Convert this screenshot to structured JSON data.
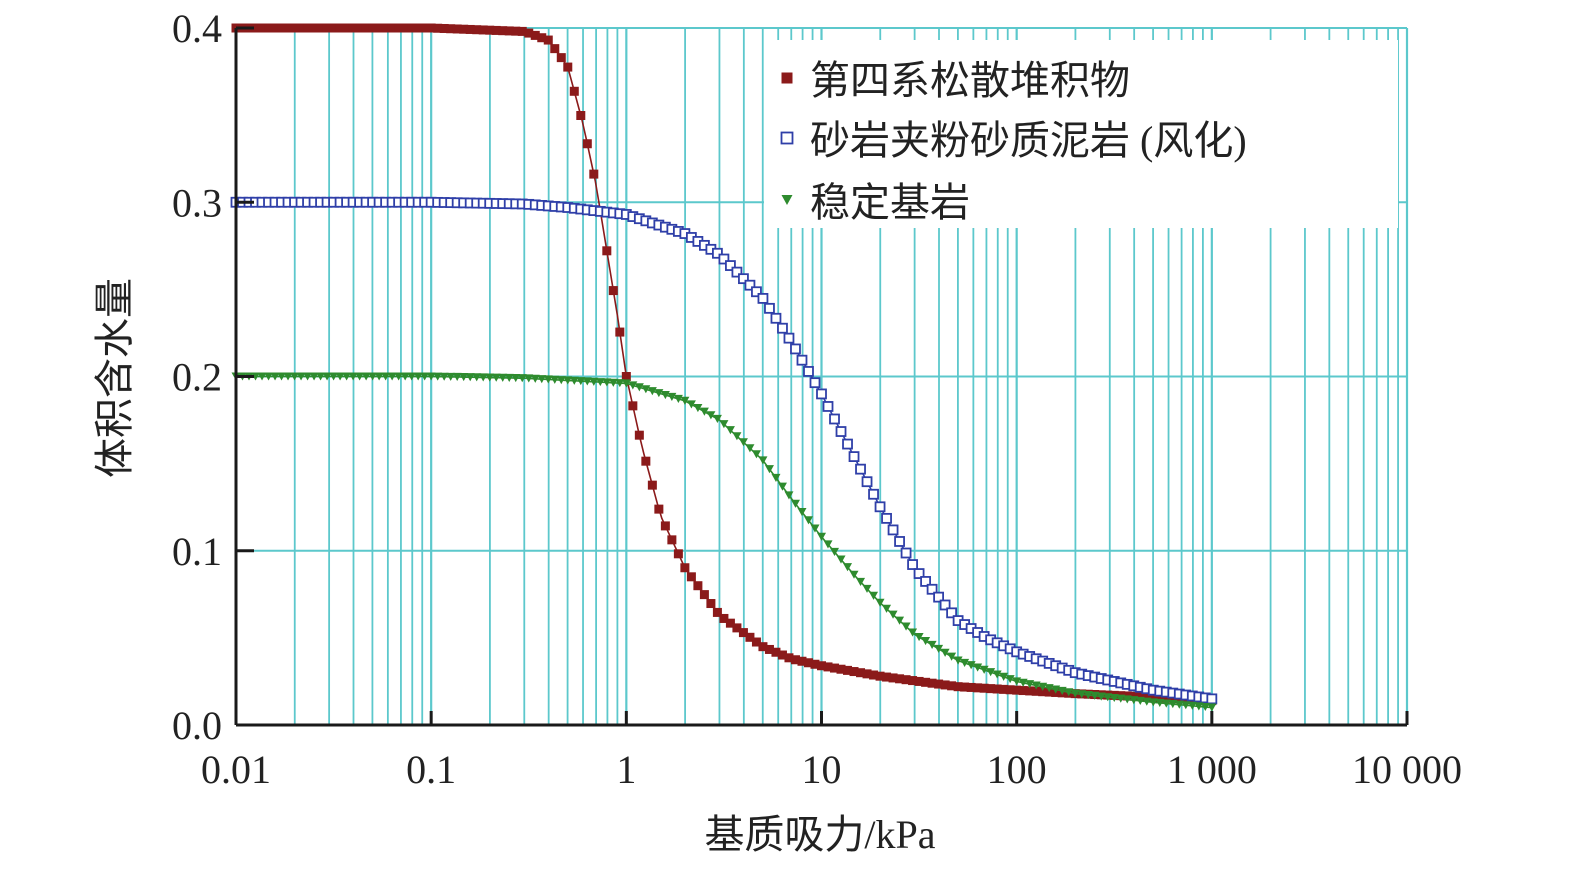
{
  "chart_data": {
    "type": "line",
    "xscale": "log",
    "xlabel": "基质吸力/kPa",
    "ylabel": "体积含水量",
    "xlim": [
      0.01,
      10000
    ],
    "ylim": [
      0.0,
      0.4
    ],
    "x_ticks": [
      {
        "value": 0.01,
        "label": "0.01"
      },
      {
        "value": 0.1,
        "label": "0.1"
      },
      {
        "value": 1,
        "label": "1"
      },
      {
        "value": 10,
        "label": "10"
      },
      {
        "value": 100,
        "label": "100"
      },
      {
        "value": 1000,
        "label": "1 000"
      },
      {
        "value": 10000,
        "label": "10 000"
      }
    ],
    "y_ticks": [
      {
        "value": 0.0,
        "label": "0.0"
      },
      {
        "value": 0.1,
        "label": "0.1"
      },
      {
        "value": 0.2,
        "label": "0.2"
      },
      {
        "value": 0.3,
        "label": "0.3"
      },
      {
        "value": 0.4,
        "label": "0.4"
      }
    ],
    "grid": true,
    "grid_color": "#5cc8cc",
    "legend_position": "top-right",
    "series": [
      {
        "name": "第四系松散堆积物",
        "marker": "filled-square",
        "color": "#8b1a1a",
        "x": [
          0.01,
          0.03,
          0.1,
          0.3,
          0.4,
          0.5,
          0.6,
          0.7,
          0.8,
          0.9,
          1.0,
          1.2,
          1.5,
          2,
          3,
          5,
          7,
          10,
          20,
          50,
          100,
          200,
          500,
          1000
        ],
        "y": [
          0.4,
          0.4,
          0.4,
          0.398,
          0.393,
          0.378,
          0.345,
          0.31,
          0.27,
          0.235,
          0.2,
          0.16,
          0.12,
          0.09,
          0.063,
          0.045,
          0.038,
          0.034,
          0.028,
          0.022,
          0.02,
          0.018,
          0.016,
          0.014
        ]
      },
      {
        "name": "砂岩夹粉砂质泥岩 (风化)",
        "marker": "open-square",
        "color": "#2f3fa8",
        "x": [
          0.01,
          0.1,
          0.3,
          0.5,
          1,
          2,
          3,
          5,
          7,
          10,
          15,
          20,
          30,
          50,
          70,
          100,
          200,
          500,
          1000
        ],
        "y": [
          0.3,
          0.3,
          0.299,
          0.297,
          0.293,
          0.282,
          0.27,
          0.245,
          0.22,
          0.19,
          0.152,
          0.125,
          0.09,
          0.06,
          0.05,
          0.042,
          0.03,
          0.02,
          0.015
        ]
      },
      {
        "name": "稳定基岩",
        "marker": "filled-triangle-down",
        "color": "#2e8b2e",
        "x": [
          0.01,
          0.1,
          0.3,
          1,
          2,
          3,
          5,
          7,
          10,
          15,
          20,
          30,
          50,
          100,
          200,
          500,
          1000
        ],
        "y": [
          0.2,
          0.2,
          0.199,
          0.196,
          0.186,
          0.175,
          0.152,
          0.13,
          0.108,
          0.085,
          0.07,
          0.052,
          0.037,
          0.025,
          0.018,
          0.013,
          0.01
        ]
      }
    ]
  }
}
